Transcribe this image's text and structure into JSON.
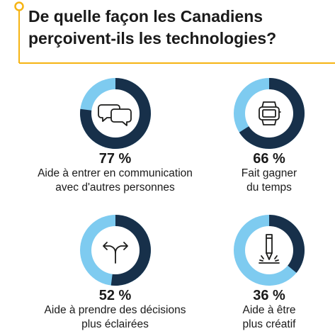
{
  "title": {
    "line1": "De quelle façon les Canadiens",
    "line2": "perçoivent-ils les technologies?"
  },
  "colors": {
    "accent": "#f6b413",
    "dark": "#17304a",
    "light": "#7ecbf0",
    "inner": "#ffffff"
  },
  "chart_data": {
    "type": "pie",
    "categories": [
      "Aide à entrer en communication avec d'autres personnes",
      "Fait gagner du temps",
      "Aide à prendre des décisions plus éclairées",
      "Aide à être plus créatif"
    ],
    "values": [
      77,
      66,
      52,
      36
    ],
    "unit": "%"
  },
  "stats": [
    {
      "percent": "77 %",
      "label_lines": [
        "Aide à entrer en communication",
        "avec d'autres personnes"
      ],
      "icon": "speech-bubbles-icon",
      "value": 77
    },
    {
      "percent": "66 %",
      "label_lines": [
        "Fait gagner",
        "du temps"
      ],
      "icon": "smartwatch-icon",
      "value": 66
    },
    {
      "percent": "52 %",
      "label_lines": [
        "Aide à prendre des décisions",
        "plus éclairées"
      ],
      "icon": "split-arrows-icon",
      "value": 52
    },
    {
      "percent": "36 %",
      "label_lines": [
        "Aide à être",
        "plus créatif"
      ],
      "icon": "pencil-sparks-icon",
      "value": 36
    }
  ]
}
